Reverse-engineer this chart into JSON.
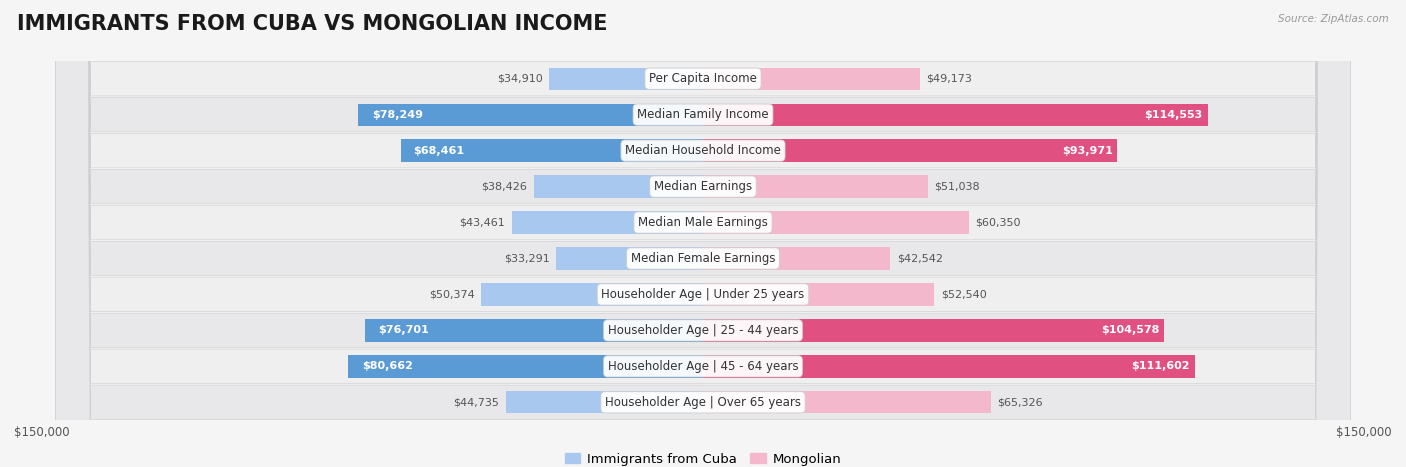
{
  "title": "IMMIGRANTS FROM CUBA VS MONGOLIAN INCOME",
  "source": "Source: ZipAtlas.com",
  "categories": [
    "Per Capita Income",
    "Median Family Income",
    "Median Household Income",
    "Median Earnings",
    "Median Male Earnings",
    "Median Female Earnings",
    "Householder Age | Under 25 years",
    "Householder Age | 25 - 44 years",
    "Householder Age | 45 - 64 years",
    "Householder Age | Over 65 years"
  ],
  "cuba_values": [
    34910,
    78249,
    68461,
    38426,
    43461,
    33291,
    50374,
    76701,
    80662,
    44735
  ],
  "mongolian_values": [
    49173,
    114553,
    93971,
    51038,
    60350,
    42542,
    52540,
    104578,
    111602,
    65326
  ],
  "cuba_light_color": "#a8c8f0",
  "cuba_dark_color": "#5b9bd5",
  "mongolian_light_color": "#f4b8cc",
  "mongolian_dark_color": "#e05080",
  "max_value": 150000,
  "row_light_color": "#f0f0f0",
  "row_dark_color": "#e8e8e8",
  "title_fontsize": 15,
  "label_fontsize": 8.5,
  "value_fontsize": 8,
  "legend_fontsize": 9.5,
  "axis_label_fontsize": 8.5,
  "cuba_threshold": 60000,
  "mongolian_threshold": 90000
}
